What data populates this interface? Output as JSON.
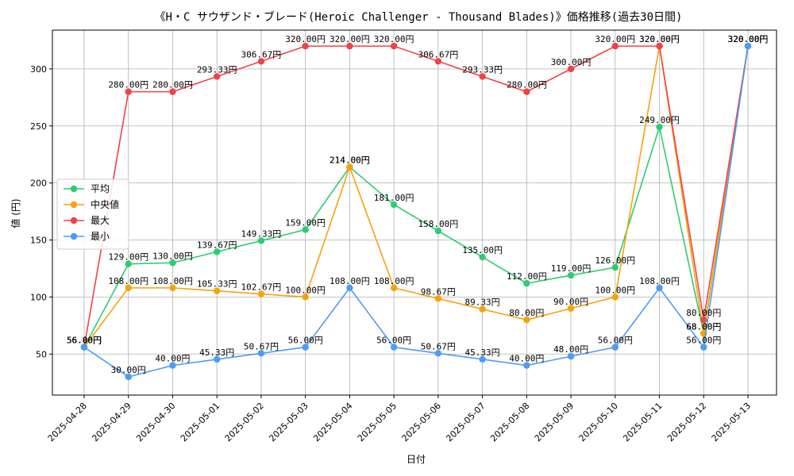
{
  "chart_data": {
    "type": "line",
    "title": "《H・C サウザンド・ブレード(Heroic Challenger - Thousand Blades)》価格推移(過去30日間)",
    "xlabel": "日付",
    "ylabel": "値 (円)",
    "ylim": [
      14,
      334
    ],
    "yticks": [
      50,
      100,
      150,
      200,
      250,
      300
    ],
    "grid": true,
    "legend_position": "center-left",
    "categories": [
      "2025-04-28",
      "2025-04-29",
      "2025-04-30",
      "2025-05-01",
      "2025-05-02",
      "2025-05-03",
      "2025-05-04",
      "2025-05-05",
      "2025-05-06",
      "2025-05-07",
      "2025-05-08",
      "2025-05-09",
      "2025-05-10",
      "2025-05-11",
      "2025-05-12",
      "2025-05-13"
    ],
    "label_suffix": "円",
    "series": [
      {
        "name": "平均",
        "color": "#2ecc71",
        "values": [
          56.0,
          129.0,
          130.0,
          139.67,
          149.33,
          159.0,
          214.0,
          181.0,
          158.0,
          135.0,
          112.0,
          119.0,
          126.0,
          249.0,
          68.0,
          320.0
        ]
      },
      {
        "name": "中央値",
        "color": "#f5a30a",
        "values": [
          56.0,
          108.0,
          108.0,
          105.33,
          102.67,
          100.0,
          214.0,
          108.0,
          98.67,
          89.33,
          80.0,
          90.0,
          100.0,
          320.0,
          68.0,
          320.0
        ]
      },
      {
        "name": "最大",
        "color": "#ef4444",
        "values": [
          56.0,
          280.0,
          280.0,
          293.33,
          306.67,
          320.0,
          320.0,
          320.0,
          306.67,
          293.33,
          280.0,
          300.0,
          320.0,
          320.0,
          80.0,
          320.0
        ]
      },
      {
        "name": "最小",
        "color": "#4b9cf5",
        "values": [
          56.0,
          30.0,
          40.0,
          45.33,
          50.67,
          56.0,
          108.0,
          56.0,
          50.67,
          45.33,
          40.0,
          48.0,
          56.0,
          108.0,
          56.0,
          320.0
        ]
      }
    ]
  }
}
